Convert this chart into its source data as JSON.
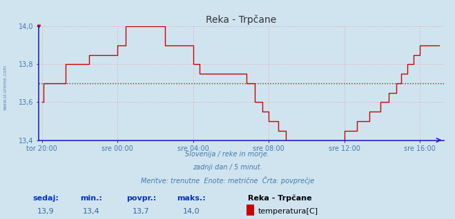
{
  "title": "Reka - Trpčane",
  "bg_color": "#d0e4f0",
  "plot_bg_color": "#d0e4f0",
  "line_color": "#cc0000",
  "avg_line_color": "#cc0000",
  "grid_color": "#e8a0a0",
  "axis_color": "#2222cc",
  "text_color": "#4477aa",
  "ylim": [
    13.4,
    14.0
  ],
  "yticks": [
    13.4,
    13.6,
    13.8,
    14.0
  ],
  "xtick_labels": [
    "tor 20:00",
    "sre 00:00",
    "sre 04:00",
    "sre 08:00",
    "sre 12:00",
    "sre 16:00"
  ],
  "avg_value": 13.7,
  "subtitle1": "Slovenija / reke in morje.",
  "subtitle2": "zadnji dan / 5 minut.",
  "subtitle3": "Meritve: trenutne  Enote: metrične  Črta: povprečje",
  "label_sedaj": "sedaj:",
  "label_min": "min.:",
  "label_povpr": "povpr.:",
  "label_maks": "maks.:",
  "val_sedaj": "13,9",
  "val_min": "13,4",
  "val_povpr": "13,7",
  "val_maks": "14,0",
  "legend_title": "Reka - Trpčane",
  "legend_label": "temperatura[C]",
  "left_label": "www.si-vreme.com"
}
